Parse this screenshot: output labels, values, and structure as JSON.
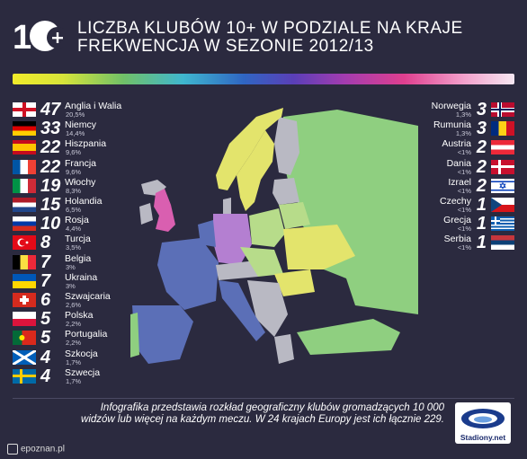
{
  "header": {
    "logo_text": "10+",
    "title_line1": "LICZBA KLUBÓW 10+ W PODZIALE NA KRAJE",
    "title_line2": "FREKWENCJA W SEZONIE 2012/13"
  },
  "left_countries": [
    {
      "count": "47",
      "name": "Anglia i Walia",
      "pct": "20,5%",
      "flag": "england"
    },
    {
      "count": "33",
      "name": "Niemcy",
      "pct": "14,4%",
      "flag": "germany"
    },
    {
      "count": "22",
      "name": "Hiszpania",
      "pct": "9,6%",
      "flag": "spain"
    },
    {
      "count": "22",
      "name": "Francja",
      "pct": "9,6%",
      "flag": "france"
    },
    {
      "count": "19",
      "name": "Włochy",
      "pct": "8,3%",
      "flag": "italy"
    },
    {
      "count": "15",
      "name": "Holandia",
      "pct": "6,5%",
      "flag": "netherlands"
    },
    {
      "count": "10",
      "name": "Rosja",
      "pct": "4,4%",
      "flag": "russia"
    },
    {
      "count": "8",
      "name": "Turcja",
      "pct": "3,5%",
      "flag": "turkey"
    },
    {
      "count": "7",
      "name": "Belgia",
      "pct": "3%",
      "flag": "belgium"
    },
    {
      "count": "7",
      "name": "Ukraina",
      "pct": "3%",
      "flag": "ukraine"
    },
    {
      "count": "6",
      "name": "Szwajcaria",
      "pct": "2,6%",
      "flag": "switzerland"
    },
    {
      "count": "5",
      "name": "Polska",
      "pct": "2,2%",
      "flag": "poland"
    },
    {
      "count": "5",
      "name": "Portugalia",
      "pct": "2,2%",
      "flag": "portugal"
    },
    {
      "count": "4",
      "name": "Szkocja",
      "pct": "1,7%",
      "flag": "scotland"
    },
    {
      "count": "4",
      "name": "Szwecja",
      "pct": "1,7%",
      "flag": "sweden"
    }
  ],
  "right_countries": [
    {
      "count": "3",
      "name": "Norwegia",
      "pct": "1,3%",
      "flag": "norway"
    },
    {
      "count": "3",
      "name": "Rumunia",
      "pct": "1,3%",
      "flag": "romania"
    },
    {
      "count": "2",
      "name": "Austria",
      "pct": "<1%",
      "flag": "austria"
    },
    {
      "count": "2",
      "name": "Dania",
      "pct": "<1%",
      "flag": "denmark"
    },
    {
      "count": "2",
      "name": "Izrael",
      "pct": "<1%",
      "flag": "israel"
    },
    {
      "count": "1",
      "name": "Czechy",
      "pct": "<1%",
      "flag": "czech"
    },
    {
      "count": "1",
      "name": "Grecja",
      "pct": "<1%",
      "flag": "greece"
    },
    {
      "count": "1",
      "name": "Serbia",
      "pct": "<1%",
      "flag": "serbia"
    }
  ],
  "footer": {
    "line1": "Infografika przedstawia rozkład geograficzny klubów gromadzących 10 000",
    "line2": "widzów lub więcej na każdym meczu. W 24 krajach Europy jest ich łącznie 229.",
    "brand": "Stadiony.net",
    "credit": "epoznan.pl"
  },
  "colors": {
    "background": "#2b2a3f",
    "map_pink": "#d95fb0",
    "map_purple": "#b47fd1",
    "map_blue": "#5b6fb7",
    "map_green": "#8fcf80",
    "map_lightgreen": "#b7dc8a",
    "map_yellow": "#e3e46c",
    "map_grey": "#b9b9c3"
  }
}
